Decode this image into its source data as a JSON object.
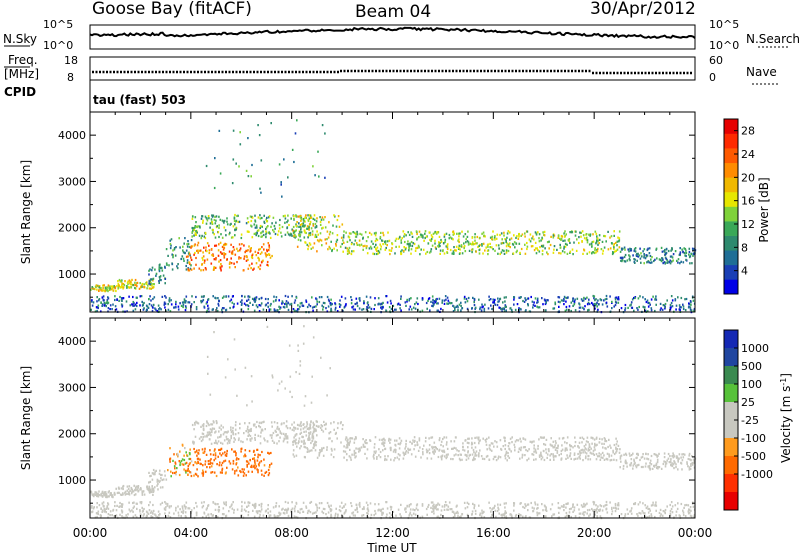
{
  "header": {
    "station": "Goose Bay (fitACF)",
    "beam": "Beam 04",
    "date": "30/Apr/2012"
  },
  "noise_panel": {
    "left_label": "N.Sky",
    "left_ticks": [
      "10^5",
      "10^0"
    ],
    "right_label": "N.Search",
    "right_ticks": [
      "10^5",
      "10^0"
    ]
  },
  "freq_panel": {
    "left_label_1": "Freq.",
    "left_label_2": "[MHz]",
    "left_ticks": [
      "18",
      "8"
    ],
    "right_label": "Nave",
    "right_ticks": [
      "60",
      "0"
    ]
  },
  "cpid_panel": {
    "label": "CPID",
    "text": "tau (fast) 503"
  },
  "power_colorbar": {
    "label": "Power [dB]",
    "ticks": [
      "28",
      "24",
      "20",
      "16",
      "12",
      "8",
      "4"
    ],
    "colors": [
      "#0000e6",
      "#1a3fb5",
      "#1f6e96",
      "#2e8a6e",
      "#3aa858",
      "#7fd23a",
      "#e6e600",
      "#f0b800",
      "#ff8c00",
      "#ff5a00",
      "#ff2a00",
      "#e60000"
    ]
  },
  "velocity_colorbar": {
    "label": "Velocity [m s",
    "label_sup": "-1",
    "label_end": "]",
    "ticks": [
      "1000",
      "500",
      "100",
      "25",
      "-25",
      "-100",
      "-500",
      "-1000"
    ],
    "colors": [
      "#1428b4",
      "#2046a0",
      "#3a8a50",
      "#57c23a",
      "#c8c8c0",
      "#c8c8c0",
      "#ff9b1e",
      "#ff6a00",
      "#ff3000",
      "#e80000"
    ]
  },
  "x_axis": {
    "ticks": [
      "00:00",
      "04:00",
      "08:00",
      "12:00",
      "16:00",
      "20:00",
      "00:00"
    ],
    "label": "Time UT"
  },
  "chart_data": {
    "type": "heatmap",
    "panels": [
      {
        "name": "power",
        "ylabel": "Slant Range [km]",
        "y_ticks": [
          1000,
          2000,
          3000,
          4000
        ],
        "ylim": [
          180,
          4500
        ]
      },
      {
        "name": "velocity",
        "ylabel": "Slant Range [km]",
        "y_ticks": [
          1000,
          2000,
          3000,
          4000
        ],
        "ylim": [
          180,
          4500
        ]
      }
    ],
    "xlim_hours": [
      0,
      24
    ],
    "power_ticks_db": [
      4,
      8,
      12,
      16,
      20,
      24,
      28
    ],
    "velocity_ticks_ms": [
      1000,
      500,
      100,
      25,
      -25,
      -100,
      -500,
      -1000
    ],
    "scatter_bands": [
      {
        "t0": 0.0,
        "t1": 1.0,
        "r0": 650,
        "r1": 780,
        "power": 16,
        "velocity": 0
      },
      {
        "t0": 1.0,
        "t1": 2.5,
        "r0": 700,
        "r1": 900,
        "power": 16,
        "velocity": 0
      },
      {
        "t0": 2.3,
        "t1": 3.0,
        "r0": 800,
        "r1": 1250,
        "power": 8,
        "velocity": 0
      },
      {
        "t0": 3.0,
        "t1": 4.0,
        "r0": 1100,
        "r1": 1800,
        "power": 10,
        "velocity": -50
      },
      {
        "t0": 3.8,
        "t1": 7.2,
        "r0": 1100,
        "r1": 1700,
        "power": 22,
        "velocity": -200
      },
      {
        "t0": 4.0,
        "t1": 9.0,
        "r0": 1800,
        "r1": 2300,
        "power": 12,
        "velocity": 0
      },
      {
        "t0": 8.0,
        "t1": 10.0,
        "r0": 1500,
        "r1": 2300,
        "power": 16,
        "velocity": 0
      },
      {
        "t0": 10.0,
        "t1": 21.0,
        "r0": 1450,
        "r1": 1950,
        "power": 14,
        "velocity": 0
      },
      {
        "t0": 21.0,
        "t1": 24.0,
        "r0": 1250,
        "r1": 1600,
        "power": 8,
        "velocity": 0
      },
      {
        "t0": 0.0,
        "t1": 24.0,
        "r0": 200,
        "r1": 550,
        "power": 6,
        "velocity": 0
      }
    ]
  }
}
